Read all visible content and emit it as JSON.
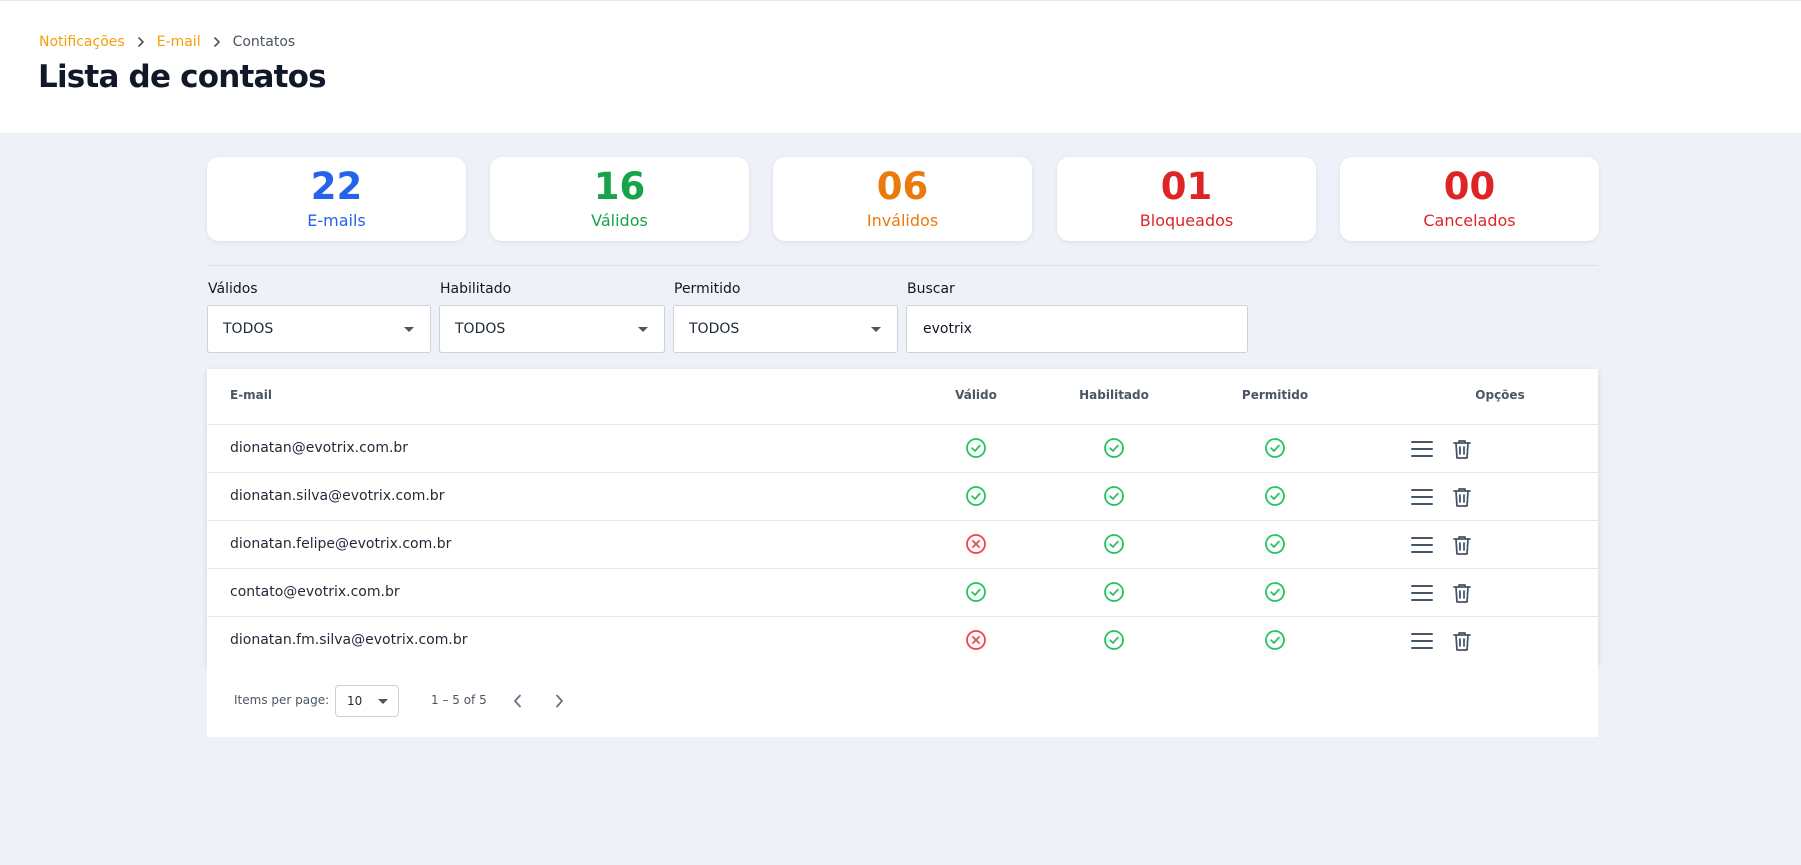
{
  "breadcrumb": {
    "item1": "Notificações",
    "item2": "E-mail",
    "current": "Contatos"
  },
  "page_title": "Lista de contatos",
  "stats": [
    {
      "value": "22",
      "label": "E-mails",
      "color": "#2563eb"
    },
    {
      "value": "16",
      "label": "Válidos",
      "color": "#16a34a"
    },
    {
      "value": "06",
      "label": "Inválidos",
      "color": "#ea7a0c"
    },
    {
      "value": "01",
      "label": "Bloqueados",
      "color": "#dc2626"
    },
    {
      "value": "00",
      "label": "Cancelados",
      "color": "#dc2626"
    }
  ],
  "filters": {
    "validos": {
      "label": "Válidos",
      "value": "TODOS"
    },
    "habilitado": {
      "label": "Habilitado",
      "value": "TODOS"
    },
    "permitido": {
      "label": "Permitido",
      "value": "TODOS"
    },
    "buscar": {
      "label": "Buscar",
      "value": "evotrix"
    }
  },
  "table": {
    "headers": {
      "email": "E-mail",
      "valido": "Válido",
      "habilitado": "Habilitado",
      "permitido": "Permitido",
      "opcoes": "Opções"
    },
    "rows": [
      {
        "email": "dionatan@evotrix.com.br",
        "valido": true,
        "habilitado": true,
        "permitido": true
      },
      {
        "email": "dionatan.silva@evotrix.com.br",
        "valido": true,
        "habilitado": true,
        "permitido": true
      },
      {
        "email": "dionatan.felipe@evotrix.com.br",
        "valido": false,
        "habilitado": true,
        "permitido": true
      },
      {
        "email": "contato@evotrix.com.br",
        "valido": true,
        "habilitado": true,
        "permitido": true
      },
      {
        "email": "dionatan.fm.silva@evotrix.com.br",
        "valido": false,
        "habilitado": true,
        "permitido": true
      }
    ]
  },
  "paginator": {
    "items_per_page_label": "Items per page:",
    "page_size": "10",
    "range": "1 – 5 of 5"
  },
  "colors": {
    "valid": "#22c55e",
    "invalid": "#ef4444",
    "accent": "#f59e0b",
    "icon": "#475569"
  }
}
